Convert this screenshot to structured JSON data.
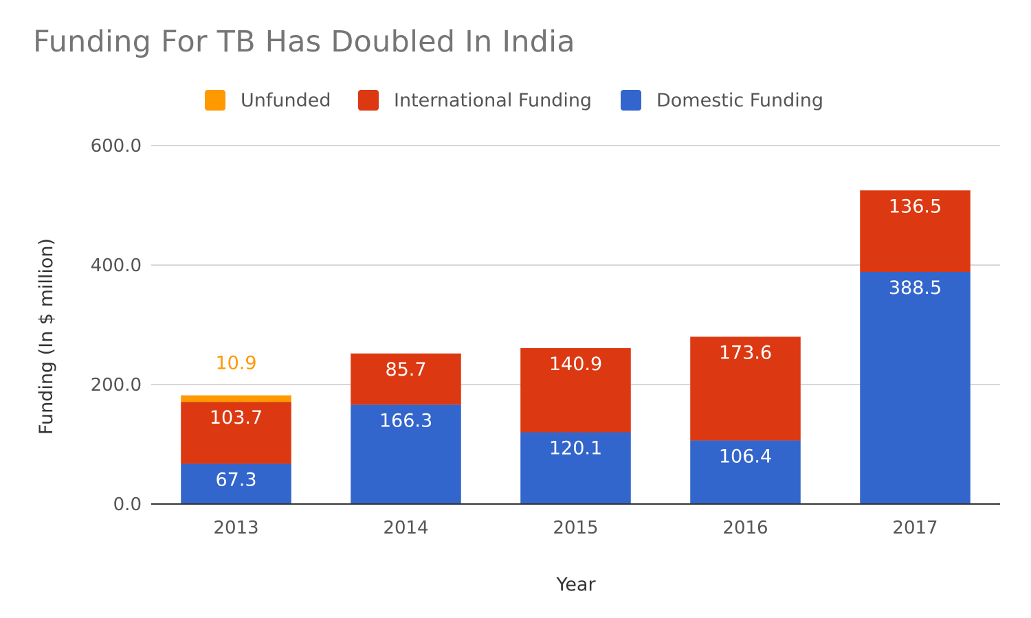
{
  "chart_data": {
    "type": "bar",
    "stacked": true,
    "title": "Funding For TB Has Doubled In India",
    "xlabel": "Year",
    "ylabel": "Funding (In $ million)",
    "categories": [
      "2013",
      "2014",
      "2015",
      "2016",
      "2017"
    ],
    "ylim": [
      0,
      600
    ],
    "yticks": [
      "0.0",
      "200.0",
      "400.0",
      "600.0"
    ],
    "yticks_values": [
      0,
      200,
      400,
      600
    ],
    "grid": true,
    "legend_position": "top",
    "series": [
      {
        "name": "Domestic Funding",
        "color": "#3366CC",
        "values": [
          67.3,
          166.3,
          120.1,
          106.4,
          388.5
        ],
        "labels": [
          "67.3",
          "166.3",
          "120.1",
          "106.4",
          "388.5"
        ]
      },
      {
        "name": "International Funding",
        "color": "#DC3912",
        "values": [
          103.7,
          85.7,
          140.9,
          173.6,
          136.5
        ],
        "labels": [
          "103.7",
          "85.7",
          "140.9",
          "173.6",
          "136.5"
        ]
      },
      {
        "name": "Unfunded",
        "color": "#FF9900",
        "values": [
          10.9,
          0,
          0,
          0,
          0
        ],
        "labels": [
          "10.9",
          "",
          "",
          "",
          ""
        ]
      }
    ],
    "legend_order": [
      2,
      1,
      0
    ]
  }
}
